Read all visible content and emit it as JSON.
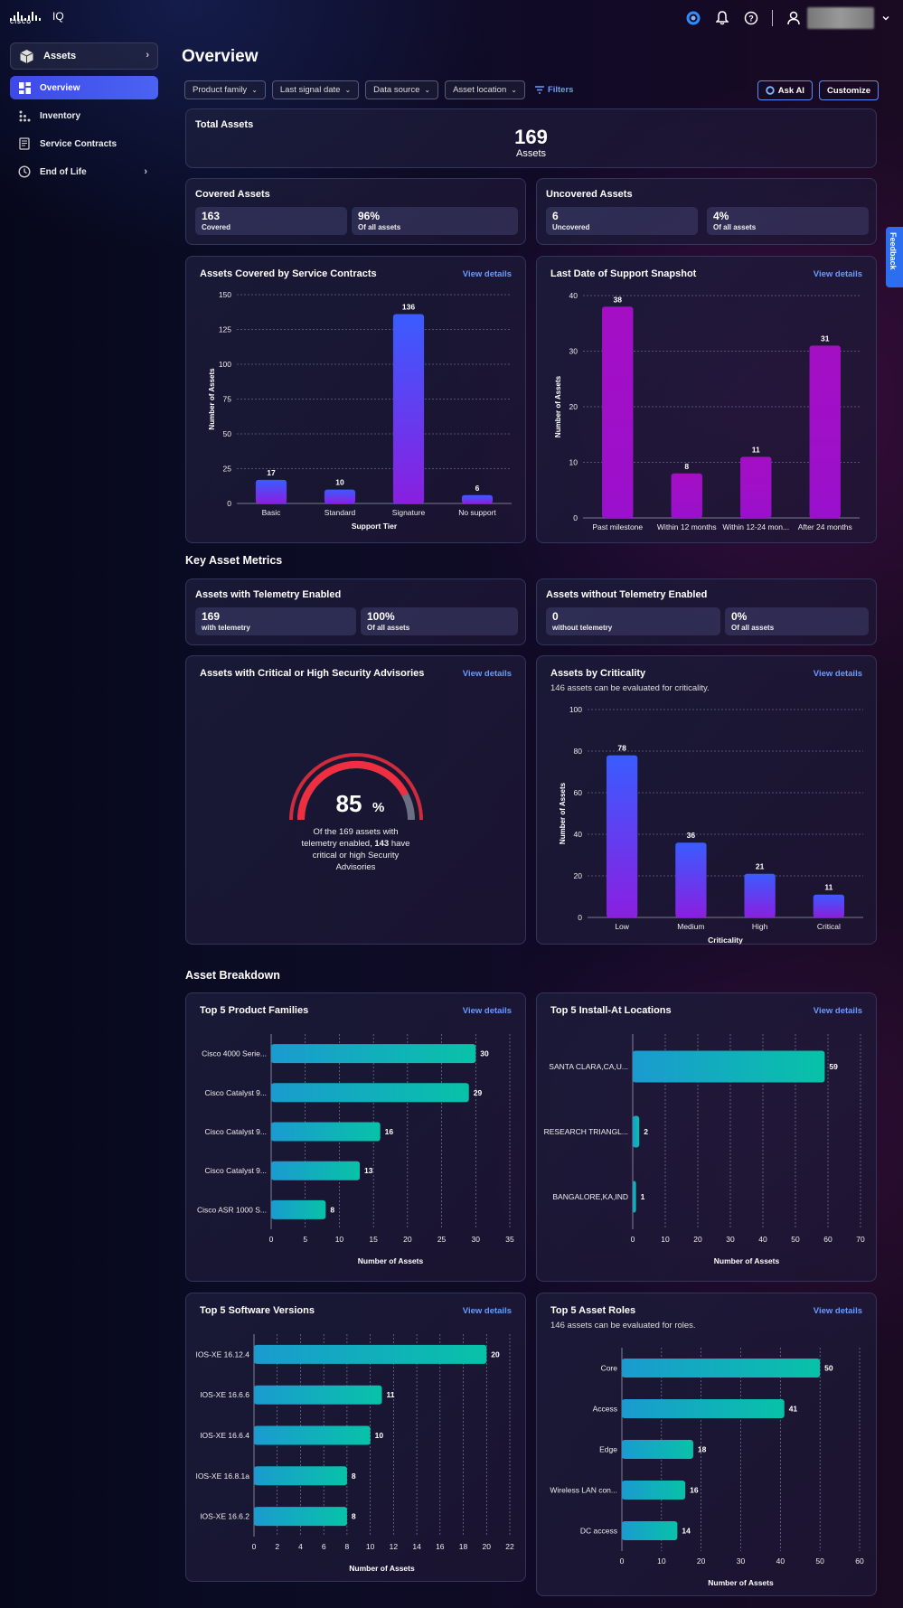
{
  "app": {
    "brand": "CISCO",
    "product": "IQ"
  },
  "sidebar": {
    "section": "Assets",
    "items": [
      {
        "label": "Overview",
        "icon": "dashboard-icon",
        "active": true
      },
      {
        "label": "Inventory",
        "icon": "grid-icon"
      },
      {
        "label": "Service Contracts",
        "icon": "contract-icon"
      },
      {
        "label": "End of Life",
        "icon": "clock-icon"
      }
    ]
  },
  "page": {
    "title": "Overview"
  },
  "filters": {
    "dropdowns": [
      "Product family",
      "Last signal date",
      "Data source",
      "Asset location"
    ],
    "filters_label": "Filters",
    "ask_ai": "Ask AI",
    "customize": "Customize"
  },
  "total": {
    "title": "Total Assets",
    "value": "169",
    "unit": "Assets"
  },
  "covered": {
    "title": "Covered Assets",
    "count": "163",
    "count_label": "Covered",
    "pct": "96%",
    "pct_label": "Of all assets"
  },
  "uncovered": {
    "title": "Uncovered Assets",
    "count": "6",
    "count_label": "Uncovered",
    "pct": "4%",
    "pct_label": "Of all assets"
  },
  "view_details": "View details",
  "sections": {
    "key_metrics": "Key Asset Metrics",
    "breakdown": "Asset Breakdown"
  },
  "telemetry": {
    "title": "Assets with Telemetry Enabled",
    "count": "169",
    "count_label": "with telemetry",
    "pct": "100%",
    "pct_label": "Of all assets"
  },
  "no_telemetry": {
    "title": "Assets without Telemetry Enabled",
    "count": "0",
    "count_label": "without telemetry",
    "pct": "0%",
    "pct_label": "Of all assets"
  },
  "advisories": {
    "title": "Assets with Critical or High Security Advisories",
    "percent": "85",
    "percent_sign": "%",
    "line1": "Of the 169 assets with",
    "line2_pre": "telemetry enabled, ",
    "line2_bold": "143",
    "line2_post": " have",
    "line3": "critical or high Security",
    "line4": "Advisories",
    "fraction": 0.85
  },
  "feedback": "Feedback",
  "chart_data": [
    {
      "id": "service-contracts",
      "title": "Assets Covered by Service Contracts",
      "type": "bar",
      "categories": [
        "Basic",
        "Standard",
        "Signature",
        "No support"
      ],
      "values": [
        17,
        10,
        136,
        6
      ],
      "xlabel": "Support Tier",
      "ylabel": "Number of Assets",
      "ylim": [
        0,
        150
      ],
      "ticks": [
        0,
        25,
        50,
        75,
        100,
        125,
        150
      ],
      "color": [
        "#3a5cff",
        "#8a1fe0"
      ]
    },
    {
      "id": "support-snapshot",
      "title": "Last Date of Support Snapshot",
      "type": "bar",
      "categories": [
        "Past milestone",
        "Within 12 months",
        "Within 12-24 mon...",
        "After 24 months"
      ],
      "values": [
        38,
        8,
        11,
        31
      ],
      "xlabel": "",
      "ylabel": "Number of Assets",
      "ylim": [
        0,
        40
      ],
      "ticks": [
        0,
        10,
        20,
        30,
        40
      ],
      "color": [
        "#a40fc4",
        "#9a10cc"
      ]
    },
    {
      "id": "criticality",
      "title": "Assets by Criticality",
      "subtitle": "146 assets can be evaluated for criticality.",
      "type": "bar",
      "categories": [
        "Low",
        "Medium",
        "High",
        "Critical"
      ],
      "values": [
        78,
        36,
        21,
        11
      ],
      "xlabel": "Criticality",
      "ylabel": "Number of Assets",
      "ylim": [
        0,
        100
      ],
      "ticks": [
        0,
        20,
        40,
        60,
        80,
        100
      ],
      "color": [
        "#3a5cff",
        "#8a1fe0"
      ]
    },
    {
      "id": "product-families",
      "title": "Top 5 Product Families",
      "type": "hbar",
      "categories": [
        "Cisco 4000 Serie...",
        "Cisco Catalyst 9...",
        "Cisco Catalyst 9...",
        "Cisco Catalyst 9...",
        "Cisco ASR 1000 S..."
      ],
      "values": [
        30,
        29,
        16,
        13,
        8
      ],
      "xlabel": "Number of Assets",
      "xlim": [
        0,
        35
      ],
      "ticks": [
        0,
        5,
        10,
        15,
        20,
        25,
        30,
        35
      ]
    },
    {
      "id": "install-locations",
      "title": "Top 5 Install-At Locations",
      "type": "hbar",
      "categories": [
        "SANTA CLARA,CA,U...",
        "RESEARCH TRIANGL...",
        "BANGALORE,KA,IND"
      ],
      "values": [
        59,
        2,
        1
      ],
      "xlabel": "Number of Assets",
      "xlim": [
        0,
        70
      ],
      "ticks": [
        0,
        10,
        20,
        30,
        40,
        50,
        60,
        70
      ]
    },
    {
      "id": "software-versions",
      "title": "Top 5 Software Versions",
      "type": "hbar",
      "categories": [
        "IOS-XE 16.12.4",
        "IOS-XE 16.6.6",
        "IOS-XE 16.6.4",
        "IOS-XE 16.8.1a",
        "IOS-XE 16.6.2"
      ],
      "values": [
        20,
        11,
        10,
        8,
        8
      ],
      "xlabel": "Number of Assets",
      "xlim": [
        0,
        22
      ],
      "ticks": [
        0,
        2,
        4,
        6,
        8,
        10,
        12,
        14,
        16,
        18,
        20,
        22
      ]
    },
    {
      "id": "asset-roles",
      "title": "Top 5 Asset Roles",
      "subtitle": "146 assets can be evaluated for roles.",
      "type": "hbar",
      "categories": [
        "Core",
        "Access",
        "Edge",
        "Wireless LAN con...",
        "DC access"
      ],
      "values": [
        50,
        41,
        18,
        16,
        14
      ],
      "xlabel": "Number of Assets",
      "xlim": [
        0,
        60
      ],
      "ticks": [
        0,
        10,
        20,
        30,
        40,
        50,
        60
      ]
    }
  ]
}
